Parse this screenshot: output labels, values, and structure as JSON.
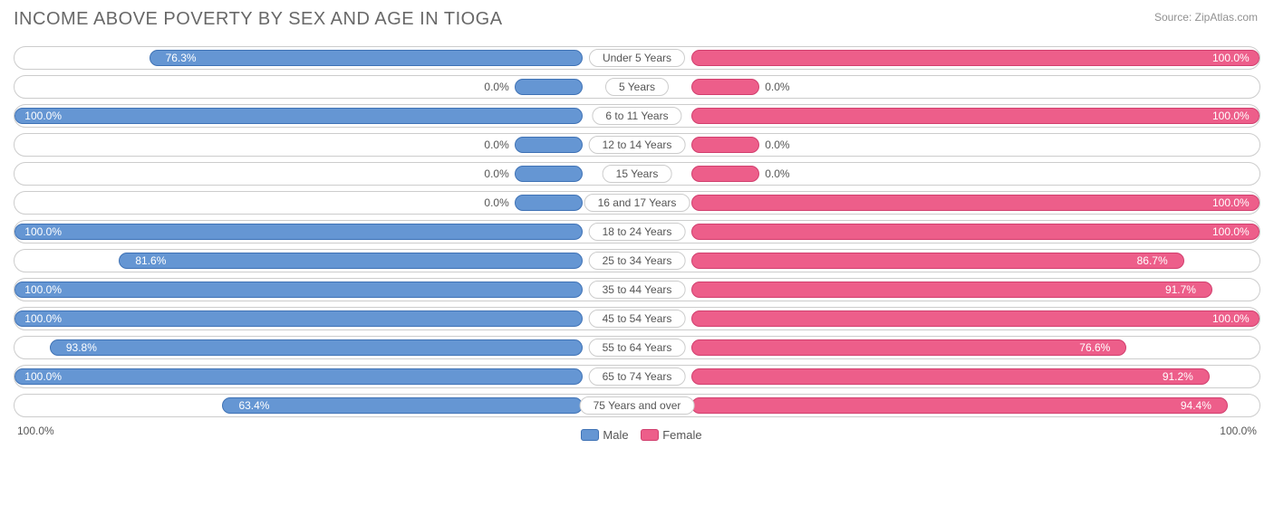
{
  "title": "INCOME ABOVE POVERTY BY SEX AND AGE IN TIOGA",
  "source": "Source: ZipAtlas.com",
  "colors": {
    "male_fill": "#6596d3",
    "male_border": "#3f72b5",
    "female_fill": "#ed5e8a",
    "female_border": "#d13f6e",
    "row_border": "#cccccc",
    "text": "#555555",
    "title": "#686868",
    "bg": "#ffffff"
  },
  "legend": {
    "male": "Male",
    "female": "Female"
  },
  "axis": {
    "left": "100.0%",
    "right": "100.0%"
  },
  "min_bar_pct": 12,
  "rows": [
    {
      "label": "Under 5 Years",
      "male": 76.3,
      "female": 100.0
    },
    {
      "label": "5 Years",
      "male": 0.0,
      "female": 0.0
    },
    {
      "label": "6 to 11 Years",
      "male": 100.0,
      "female": 100.0
    },
    {
      "label": "12 to 14 Years",
      "male": 0.0,
      "female": 0.0
    },
    {
      "label": "15 Years",
      "male": 0.0,
      "female": 0.0
    },
    {
      "label": "16 and 17 Years",
      "male": 0.0,
      "female": 100.0
    },
    {
      "label": "18 to 24 Years",
      "male": 100.0,
      "female": 100.0
    },
    {
      "label": "25 to 34 Years",
      "male": 81.6,
      "female": 86.7
    },
    {
      "label": "35 to 44 Years",
      "male": 100.0,
      "female": 91.7
    },
    {
      "label": "45 to 54 Years",
      "male": 100.0,
      "female": 100.0
    },
    {
      "label": "55 to 64 Years",
      "male": 93.8,
      "female": 76.6
    },
    {
      "label": "65 to 74 Years",
      "male": 100.0,
      "female": 91.2
    },
    {
      "label": "75 Years and over",
      "male": 63.4,
      "female": 94.4
    }
  ]
}
